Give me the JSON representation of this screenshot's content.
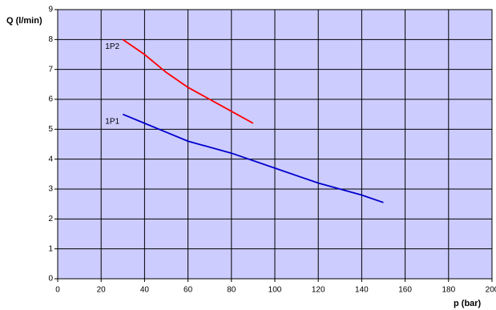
{
  "chart_data": {
    "type": "line",
    "xlabel": "p (bar)",
    "ylabel": "Q (l/min)",
    "xlim": [
      0,
      200
    ],
    "ylim": [
      0,
      9
    ],
    "xticks": [
      0,
      20,
      40,
      60,
      80,
      100,
      120,
      140,
      160,
      180,
      200
    ],
    "yticks": [
      0,
      1,
      2,
      3,
      4,
      5,
      6,
      7,
      8,
      9
    ],
    "grid": true,
    "background": "#ccccff",
    "series": [
      {
        "name": "1P2",
        "color": "#ff0000",
        "x": [
          30,
          40,
          50,
          60,
          70,
          80,
          90
        ],
        "values": [
          8,
          7.5,
          6.9,
          6.4,
          6.0,
          5.6,
          5.2
        ]
      },
      {
        "name": "1P1",
        "color": "#0000cc",
        "x": [
          30,
          40,
          50,
          60,
          80,
          100,
          120,
          140,
          150
        ],
        "values": [
          5.5,
          5.2,
          4.9,
          4.6,
          4.2,
          3.7,
          3.2,
          2.8,
          2.55
        ]
      }
    ]
  }
}
